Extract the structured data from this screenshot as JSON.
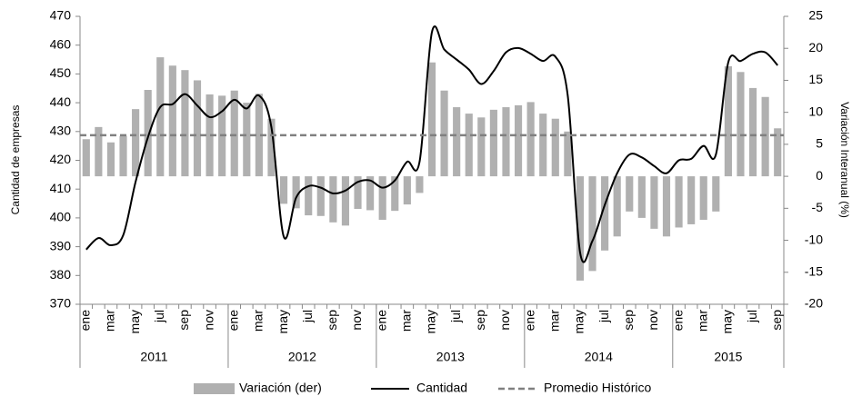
{
  "chart_data": {
    "type": "bar-line",
    "y_label": "Cantidad de empresas",
    "y2_label": "Variación Interanual (%)",
    "categories": [
      "ene",
      null,
      "mar",
      null,
      "may",
      null,
      "jul",
      null,
      "sep",
      null,
      "nov",
      null,
      "ene",
      null,
      "mar",
      null,
      "may",
      null,
      "jul",
      null,
      "sep",
      null,
      "nov",
      null,
      "ene",
      null,
      "mar",
      null,
      "may",
      null,
      "jul",
      null,
      "sep",
      null,
      "nov",
      null,
      "ene",
      null,
      "mar",
      null,
      "may",
      null,
      "jul",
      null,
      "sep",
      null,
      "nov",
      null,
      "ene",
      null,
      "mar",
      null,
      "may",
      null,
      "jul",
      null,
      "sep"
    ],
    "x_groups": [
      "2011",
      "2012",
      "2013",
      "2014",
      "2015"
    ],
    "ylim": [
      370,
      470
    ],
    "yticks": [
      370,
      380,
      390,
      400,
      410,
      420,
      430,
      440,
      450,
      460,
      470
    ],
    "y2lim": [
      -20,
      25
    ],
    "y2ticks": [
      -20,
      -15,
      -10,
      -5,
      0,
      5,
      10,
      15,
      20,
      25
    ],
    "series": [
      {
        "name": "Variación (der)",
        "type": "bar",
        "axis": "y2",
        "color": "#b0b0b0",
        "values": [
          5.8,
          7.7,
          5.3,
          6.3,
          10.5,
          13.5,
          18.6,
          17.3,
          16.6,
          15,
          12.8,
          12.6,
          13.4,
          11.5,
          12.9,
          9,
          -4.3,
          -5,
          -6.1,
          -6.2,
          -7.2,
          -7.7,
          -5.1,
          -5.3,
          -6.8,
          -5.4,
          -4.4,
          -2.6,
          17.8,
          13.4,
          10.8,
          9.8,
          9.2,
          10.4,
          10.8,
          11.1,
          11.6,
          9.8,
          9,
          7,
          -16.3,
          -14.8,
          -11.6,
          -9.4,
          -5.5,
          -6.5,
          -8.2,
          -9.4,
          -8,
          -7.5,
          -6.8,
          -5.5,
          17.2,
          16.3,
          13.8,
          12.4,
          7.5
        ]
      },
      {
        "name": "Cantidad",
        "type": "line",
        "color": "#000000",
        "values": [
          389,
          393,
          390.5,
          394,
          412.5,
          428,
          438.5,
          439.5,
          443,
          439,
          435,
          437,
          441,
          438,
          442.5,
          431.5,
          393.5,
          407,
          411,
          410.5,
          408.5,
          409.5,
          412.5,
          413,
          410.5,
          413,
          419.5,
          419.5,
          464.5,
          458.5,
          455,
          451.5,
          446.5,
          451,
          457.5,
          459,
          457,
          454.5,
          456,
          442.5,
          388,
          392,
          404.5,
          415.5,
          422,
          421,
          418,
          415.5,
          420,
          420.5,
          425,
          422,
          454,
          454.5,
          457,
          457.5,
          453
        ]
      },
      {
        "name": "Promedio Histórico",
        "type": "hline",
        "color": "#808080",
        "dashed": true,
        "value": 428.7
      }
    ]
  }
}
